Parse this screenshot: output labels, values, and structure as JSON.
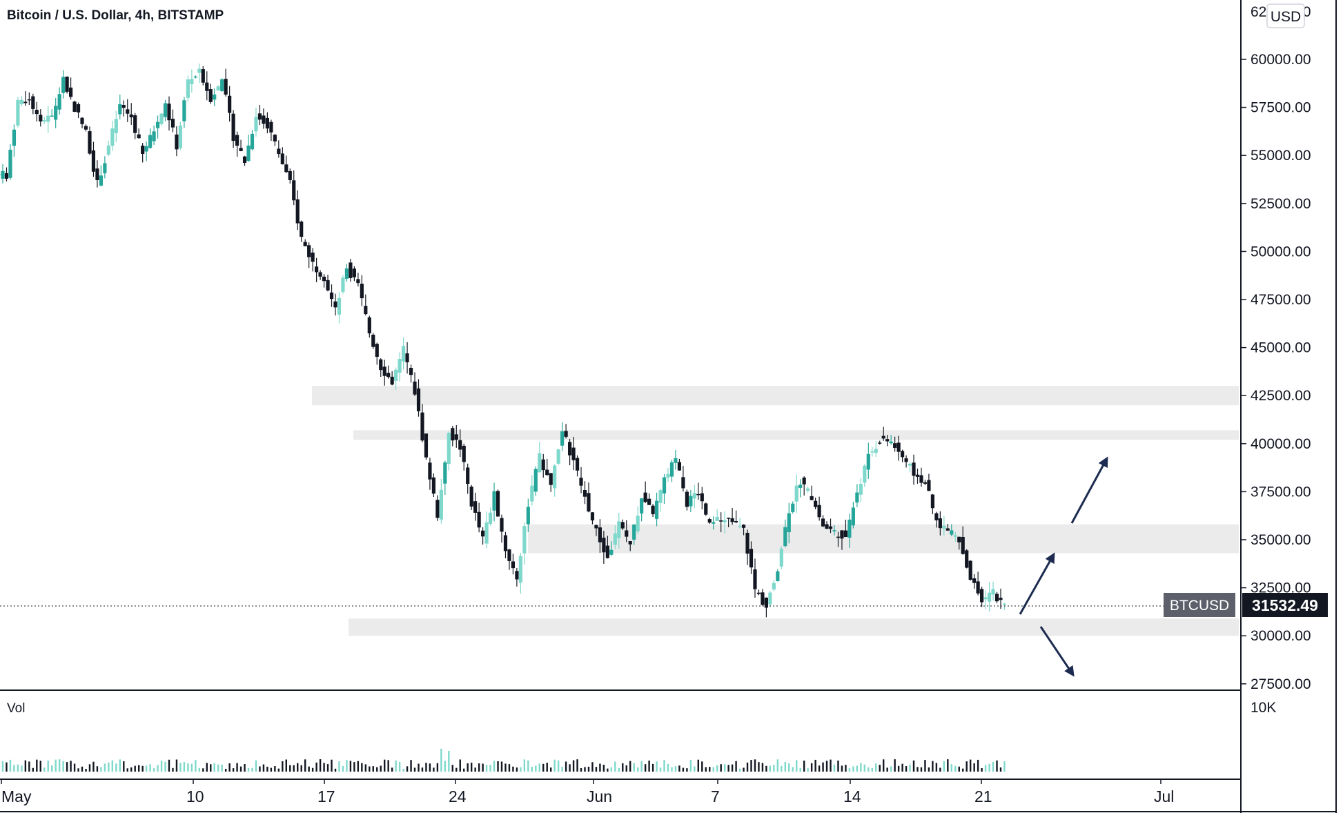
{
  "header": {
    "title": "Bitcoin / U.S. Dollar, 4h, BITSTAMP"
  },
  "colors": {
    "up": "#26a69a",
    "up_light": "#7fd8cc",
    "down": "#131722",
    "zone": "#ebebeb",
    "arrow": "#1c2b4f",
    "axis": "#131722",
    "badge_bg": "#131722",
    "badge_alt_bg": "#5d606b"
  },
  "price_axis": {
    "currency_label": "USD",
    "top_partial_label": "62500.00",
    "tick_labels": [
      "60000.00",
      "57500.00",
      "55000.00",
      "52500.00",
      "50000.00",
      "47500.00",
      "45000.00",
      "42500.00",
      "40000.00",
      "37500.00",
      "35000.00",
      "32500.00",
      "30000.00",
      "27500.00"
    ]
  },
  "last_price": {
    "symbol": "BTCUSD",
    "value": "31532.49"
  },
  "volume_pane": {
    "label": "Vol",
    "axis_label": "10K"
  },
  "time_axis": {
    "labels": [
      "May",
      "10",
      "17",
      "24",
      "Jun",
      "7",
      "14",
      "21",
      "Jul"
    ]
  },
  "chart_data": {
    "type": "candlestick",
    "title": "Bitcoin / U.S. Dollar, 4h, BITSTAMP",
    "interval": "4h",
    "exchange": "BITSTAMP",
    "y_scale": "linear",
    "ylim": [
      26500,
      63000
    ],
    "y_ticks": [
      27500,
      30000,
      32500,
      35000,
      37500,
      40000,
      42500,
      45000,
      47500,
      50000,
      52500,
      55000,
      57500,
      60000
    ],
    "x_ticks": [
      "May",
      "10",
      "17",
      "24",
      "Jun",
      "7",
      "14",
      "21",
      "Jul"
    ],
    "close_path": [
      [
        "May 3",
        54000
      ],
      [
        "May 4",
        57800
      ],
      [
        "May 5",
        58000
      ],
      [
        "May 6",
        56800
      ],
      [
        "May 7",
        57000
      ],
      [
        "May 8",
        58900
      ],
      [
        "May 9",
        57500
      ],
      [
        "May 10",
        56200
      ],
      [
        "May 11",
        53500
      ],
      [
        "May 12",
        55500
      ],
      [
        "May 13",
        57600
      ],
      [
        "May 14",
        57000
      ],
      [
        "May 15",
        55000
      ],
      [
        "May 16",
        56300
      ],
      [
        "May 17",
        57700
      ],
      [
        "May 18",
        55500
      ],
      [
        "May 19",
        58900
      ],
      [
        "May 20",
        59300
      ],
      [
        "May 21",
        58000
      ],
      [
        "May 22",
        58900
      ],
      [
        "May 23",
        56000
      ],
      [
        "May 24",
        54700
      ],
      [
        "May 25",
        57100
      ],
      [
        "May 26",
        56600
      ],
      [
        "May 27",
        55100
      ],
      [
        "May 28",
        53500
      ],
      [
        "May 29",
        50700
      ],
      [
        "May 30",
        49400
      ],
      [
        "May 31",
        48700
      ],
      [
        "Jun 1",
        46900
      ],
      [
        "Jun 2",
        49200
      ],
      [
        "Jun 3",
        48200
      ],
      [
        "Jun 4",
        45800
      ],
      [
        "Jun 5",
        44000
      ],
      [
        "Jun 6",
        43200
      ],
      [
        "Jun 7",
        44900
      ],
      [
        "Jun 8",
        42700
      ],
      [
        "Jun 9",
        39200
      ],
      [
        "Jun 10",
        36300
      ],
      [
        "Jun 11",
        40600
      ],
      [
        "Jun 12",
        39800
      ],
      [
        "Jun 13",
        36900
      ],
      [
        "Jun 14",
        35000
      ],
      [
        "Jun 15",
        37300
      ],
      [
        "Jun 16",
        34500
      ],
      [
        "Jun 17",
        33000
      ],
      [
        "Jun 18",
        36900
      ],
      [
        "Jun 19",
        39300
      ],
      [
        "Jun 20",
        37800
      ],
      [
        "Jun 21",
        40700
      ],
      [
        "Jun 22",
        39100
      ],
      [
        "Jun 23",
        37200
      ],
      [
        "Jun 24",
        35400
      ],
      [
        "Jun 25",
        34000
      ],
      [
        "Jun 26",
        35800
      ],
      [
        "Jun 27",
        34800
      ],
      [
        "Jun 28",
        37300
      ],
      [
        "Jun 29",
        36200
      ],
      [
        "Jun 30",
        38100
      ],
      [
        "Jul 1",
        39200
      ],
      [
        "Jul 2",
        36900
      ],
      [
        "Jul 3",
        37500
      ],
      [
        "Jul 4",
        35700
      ],
      [
        "Jul 5",
        36100
      ],
      [
        "Jul 6",
        35900
      ],
      [
        "Jul 7",
        35500
      ],
      [
        "Jul 8",
        32400
      ],
      [
        "Jul 9",
        31500
      ],
      [
        "Jul 10",
        33600
      ],
      [
        "Jul 11",
        36600
      ],
      [
        "Jul 12",
        38100
      ],
      [
        "Jul 13",
        37200
      ],
      [
        "Jul 14",
        35700
      ],
      [
        "Jul 15",
        35400
      ],
      [
        "Jul 16",
        35200
      ],
      [
        "Jul 17",
        37500
      ],
      [
        "Jul 18",
        39300
      ],
      [
        "Jul 19",
        40200
      ],
      [
        "Jul 20",
        40100
      ],
      [
        "Jul 21",
        39300
      ],
      [
        "Jul 22",
        38500
      ],
      [
        "Jul 23",
        38000
      ],
      [
        "Jul 24",
        35900
      ],
      [
        "Jul 25",
        35500
      ],
      [
        "Jul 26",
        35000
      ],
      [
        "Jul 27",
        33000
      ],
      [
        "Jul 28",
        31800
      ],
      [
        "Jul 29",
        32300
      ],
      [
        "Jul 30",
        31532
      ]
    ],
    "zones": [
      {
        "low": 42000,
        "high": 43000
      },
      {
        "low": 40200,
        "high": 40700
      },
      {
        "low": 34300,
        "high": 35800
      },
      {
        "low": 30000,
        "high": 30900
      }
    ],
    "lows_marked": [
      30000,
      31000,
      31000
    ],
    "last_price": 31532.49,
    "scenario_arrows": [
      "up",
      "up",
      "down"
    ]
  }
}
